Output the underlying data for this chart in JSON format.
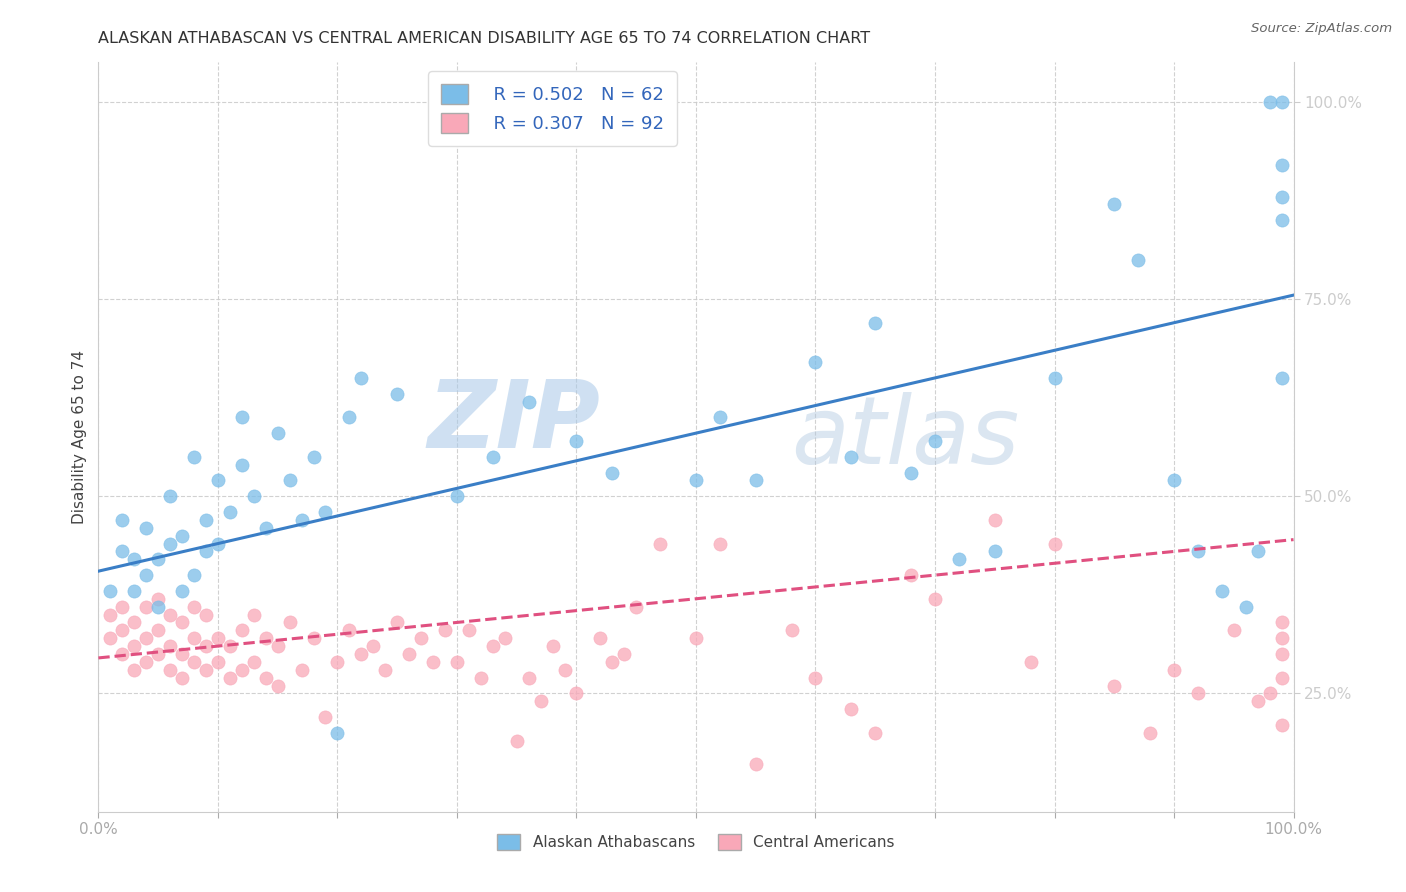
{
  "title": "ALASKAN ATHABASCAN VS CENTRAL AMERICAN DISABILITY AGE 65 TO 74 CORRELATION CHART",
  "source": "Source: ZipAtlas.com",
  "ylabel": "Disability Age 65 to 74",
  "xlim": [
    0,
    1
  ],
  "ylim": [
    0.1,
    1.05
  ],
  "xticks": [
    0.0,
    0.1,
    0.2,
    0.3,
    0.4,
    0.5,
    0.6,
    0.7,
    0.8,
    0.9,
    1.0
  ],
  "yticks": [
    0.25,
    0.5,
    0.75,
    1.0
  ],
  "xticklabels": [
    "0.0%",
    "",
    "",
    "",
    "",
    "",
    "",
    "",
    "",
    "",
    "100.0%"
  ],
  "yticklabels": [
    "25.0%",
    "50.0%",
    "75.0%",
    "100.0%"
  ],
  "blue_R": "R = 0.502",
  "blue_N": "N = 62",
  "pink_R": "R = 0.307",
  "pink_N": "N = 92",
  "blue_color": "#7bbde8",
  "pink_color": "#f9a8b8",
  "blue_line_color": "#3a7ec6",
  "pink_line_color": "#e05080",
  "watermark_zip": "ZIP",
  "watermark_atlas": "atlas",
  "legend_blue_label": "Alaskan Athabascans",
  "legend_pink_label": "Central Americans",
  "blue_trend_y_start": 0.405,
  "blue_trend_y_end": 0.755,
  "pink_trend_y_start": 0.295,
  "pink_trend_y_end": 0.445,
  "blue_scatter_x": [
    0.01,
    0.02,
    0.02,
    0.03,
    0.03,
    0.04,
    0.04,
    0.05,
    0.05,
    0.06,
    0.06,
    0.07,
    0.07,
    0.08,
    0.08,
    0.09,
    0.09,
    0.1,
    0.1,
    0.11,
    0.12,
    0.12,
    0.13,
    0.14,
    0.15,
    0.16,
    0.17,
    0.18,
    0.19,
    0.2,
    0.21,
    0.22,
    0.25,
    0.3,
    0.33,
    0.36,
    0.4,
    0.43,
    0.5,
    0.52,
    0.55,
    0.6,
    0.63,
    0.65,
    0.68,
    0.7,
    0.72,
    0.75,
    0.8,
    0.85,
    0.87,
    0.9,
    0.92,
    0.94,
    0.96,
    0.97,
    0.98,
    0.99,
    0.99,
    0.99,
    0.99,
    0.99
  ],
  "blue_scatter_y": [
    0.38,
    0.43,
    0.47,
    0.42,
    0.38,
    0.4,
    0.46,
    0.42,
    0.36,
    0.44,
    0.5,
    0.38,
    0.45,
    0.55,
    0.4,
    0.47,
    0.43,
    0.52,
    0.44,
    0.48,
    0.6,
    0.54,
    0.5,
    0.46,
    0.58,
    0.52,
    0.47,
    0.55,
    0.48,
    0.2,
    0.6,
    0.65,
    0.63,
    0.5,
    0.55,
    0.62,
    0.57,
    0.53,
    0.52,
    0.6,
    0.52,
    0.67,
    0.55,
    0.72,
    0.53,
    0.57,
    0.42,
    0.43,
    0.65,
    0.87,
    0.8,
    0.52,
    0.43,
    0.38,
    0.36,
    0.43,
    1.0,
    1.0,
    0.92,
    0.88,
    0.65,
    0.85
  ],
  "pink_scatter_x": [
    0.01,
    0.01,
    0.02,
    0.02,
    0.02,
    0.03,
    0.03,
    0.03,
    0.04,
    0.04,
    0.04,
    0.05,
    0.05,
    0.05,
    0.06,
    0.06,
    0.06,
    0.07,
    0.07,
    0.07,
    0.08,
    0.08,
    0.08,
    0.09,
    0.09,
    0.09,
    0.1,
    0.1,
    0.11,
    0.11,
    0.12,
    0.12,
    0.13,
    0.13,
    0.14,
    0.14,
    0.15,
    0.15,
    0.16,
    0.17,
    0.18,
    0.19,
    0.2,
    0.21,
    0.22,
    0.23,
    0.24,
    0.25,
    0.26,
    0.27,
    0.28,
    0.29,
    0.3,
    0.31,
    0.32,
    0.33,
    0.34,
    0.35,
    0.36,
    0.37,
    0.38,
    0.39,
    0.4,
    0.42,
    0.43,
    0.44,
    0.45,
    0.47,
    0.5,
    0.52,
    0.55,
    0.58,
    0.6,
    0.63,
    0.65,
    0.68,
    0.7,
    0.75,
    0.78,
    0.8,
    0.85,
    0.88,
    0.9,
    0.92,
    0.95,
    0.97,
    0.98,
    0.99,
    0.99,
    0.99,
    0.99,
    0.99
  ],
  "pink_scatter_y": [
    0.32,
    0.35,
    0.3,
    0.33,
    0.36,
    0.28,
    0.31,
    0.34,
    0.29,
    0.32,
    0.36,
    0.3,
    0.33,
    0.37,
    0.28,
    0.31,
    0.35,
    0.27,
    0.3,
    0.34,
    0.29,
    0.32,
    0.36,
    0.28,
    0.31,
    0.35,
    0.29,
    0.32,
    0.27,
    0.31,
    0.28,
    0.33,
    0.29,
    0.35,
    0.27,
    0.32,
    0.26,
    0.31,
    0.34,
    0.28,
    0.32,
    0.22,
    0.29,
    0.33,
    0.3,
    0.31,
    0.28,
    0.34,
    0.3,
    0.32,
    0.29,
    0.33,
    0.29,
    0.33,
    0.27,
    0.31,
    0.32,
    0.19,
    0.27,
    0.24,
    0.31,
    0.28,
    0.25,
    0.32,
    0.29,
    0.3,
    0.36,
    0.44,
    0.32,
    0.44,
    0.16,
    0.33,
    0.27,
    0.23,
    0.2,
    0.4,
    0.37,
    0.47,
    0.29,
    0.44,
    0.26,
    0.2,
    0.28,
    0.25,
    0.33,
    0.24,
    0.25,
    0.34,
    0.3,
    0.27,
    0.32,
    0.21
  ]
}
